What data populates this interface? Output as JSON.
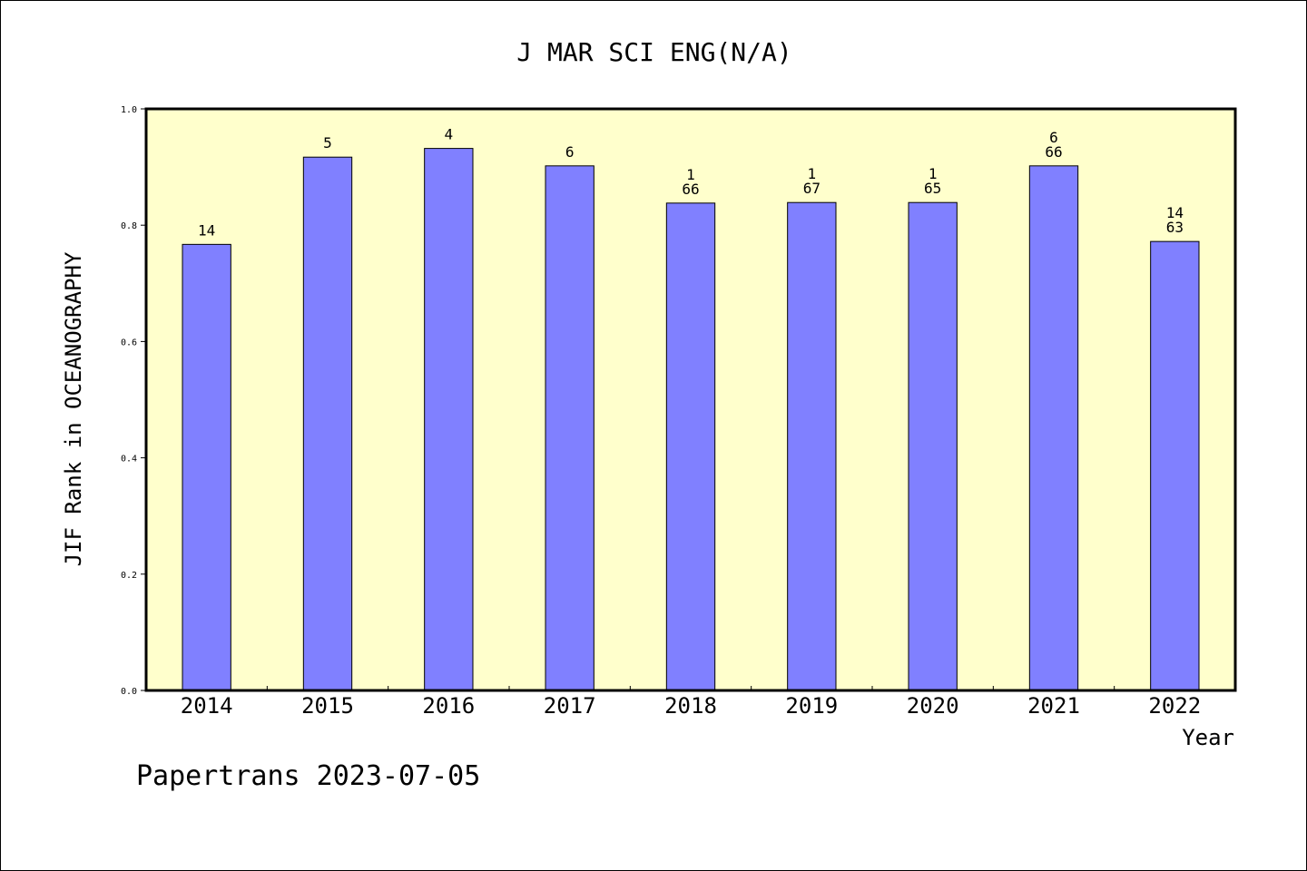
{
  "chart_data": {
    "type": "bar",
    "title": "J MAR SCI ENG(N/A)",
    "xlabel": "Year",
    "ylabel": "JIF Rank in OCEANOGRAPHY",
    "ylim": [
      0,
      1.0
    ],
    "yticks": [
      "0.0",
      "0.2",
      "0.4",
      "0.6",
      "0.8",
      "1.0"
    ],
    "grid": false,
    "categories": [
      "2014",
      "2015",
      "2016",
      "2017",
      "2018",
      "2019",
      "2020",
      "2021",
      "2022"
    ],
    "values": [
      0.767,
      0.917,
      0.932,
      0.902,
      0.838,
      0.839,
      0.839,
      0.902,
      0.772
    ],
    "bar_labels": [
      [
        "14"
      ],
      [
        "5"
      ],
      [
        "4"
      ],
      [
        "6"
      ],
      [
        "1",
        "66"
      ],
      [
        "1",
        "67"
      ],
      [
        "1",
        "65"
      ],
      [
        "6",
        "66"
      ],
      [
        "14",
        "63"
      ]
    ],
    "bar_color": "#8080ff",
    "plot_background": "#ffffcc"
  },
  "footer": "Papertrans 2023-07-05"
}
